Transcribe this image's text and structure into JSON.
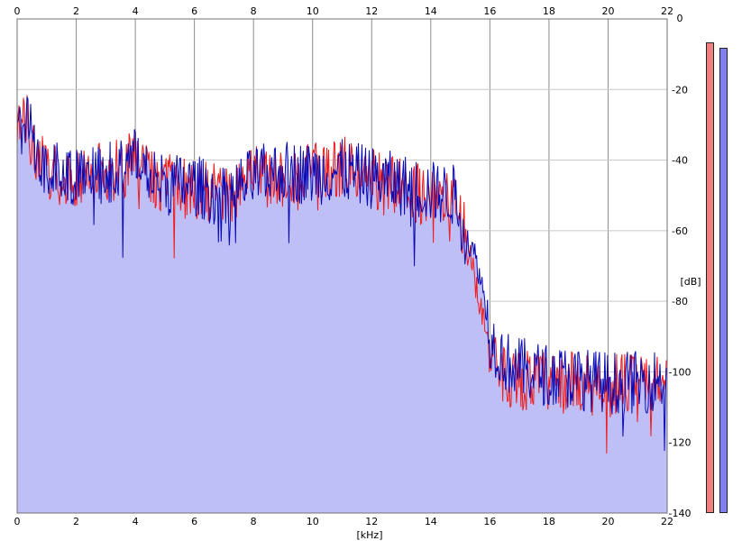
{
  "chart_data": {
    "type": "area",
    "title": "",
    "xlabel": "[kHz]",
    "ylabel": "[dB]",
    "xlim": [
      0,
      22
    ],
    "ylim": [
      -140,
      0
    ],
    "x_ticks": [
      0,
      2,
      4,
      6,
      8,
      10,
      12,
      14,
      16,
      18,
      20,
      22
    ],
    "y_ticks": [
      0,
      -20,
      -40,
      -60,
      -80,
      -100,
      -120,
      -140
    ],
    "grid": true,
    "series": [
      {
        "color": "#ee1c1c",
        "envelope_x": [
          0,
          0.3,
          0.6,
          1,
          1.5,
          2,
          3,
          3.7,
          4,
          5,
          6,
          7,
          8,
          9,
          10,
          11,
          12,
          13,
          14,
          14.8,
          15.2,
          15.5,
          15.8,
          16,
          16.5,
          17,
          18,
          19,
          20,
          21,
          22
        ],
        "envelope_y": [
          -33,
          -29,
          -37,
          -43,
          -45,
          -44,
          -44,
          -41,
          -40,
          -47,
          -48,
          -50,
          -45,
          -45,
          -44,
          -42,
          -45,
          -48,
          -50,
          -53,
          -60,
          -75,
          -85,
          -97,
          -101,
          -102,
          -103,
          -103,
          -104,
          -103,
          -102
        ]
      },
      {
        "color": "#0a0ab4",
        "envelope_x": [
          0,
          0.3,
          0.6,
          1,
          1.5,
          2,
          3,
          3.7,
          4,
          5,
          6,
          7,
          8,
          9,
          10,
          11,
          12,
          13,
          14,
          14.8,
          15.2,
          15.5,
          15.8,
          16,
          16.5,
          17,
          18,
          19,
          20,
          21,
          22
        ],
        "envelope_y": [
          -31,
          -28,
          -36,
          -42,
          -44,
          -44,
          -44,
          -42,
          -40,
          -47,
          -47,
          -51,
          -45,
          -43,
          -44,
          -43,
          -45,
          -47,
          -49,
          -50,
          -62,
          -67,
          -78,
          -90,
          -97,
          -99,
          -101,
          -102,
          -103,
          -103,
          -102
        ]
      }
    ],
    "fill_color": "#bfbff7",
    "meters": [
      {
        "level_db": -140,
        "peak_db": -7,
        "color": "#f08080"
      },
      {
        "level_db": -140,
        "peak_db": -9,
        "color": "#8080f0"
      }
    ]
  }
}
